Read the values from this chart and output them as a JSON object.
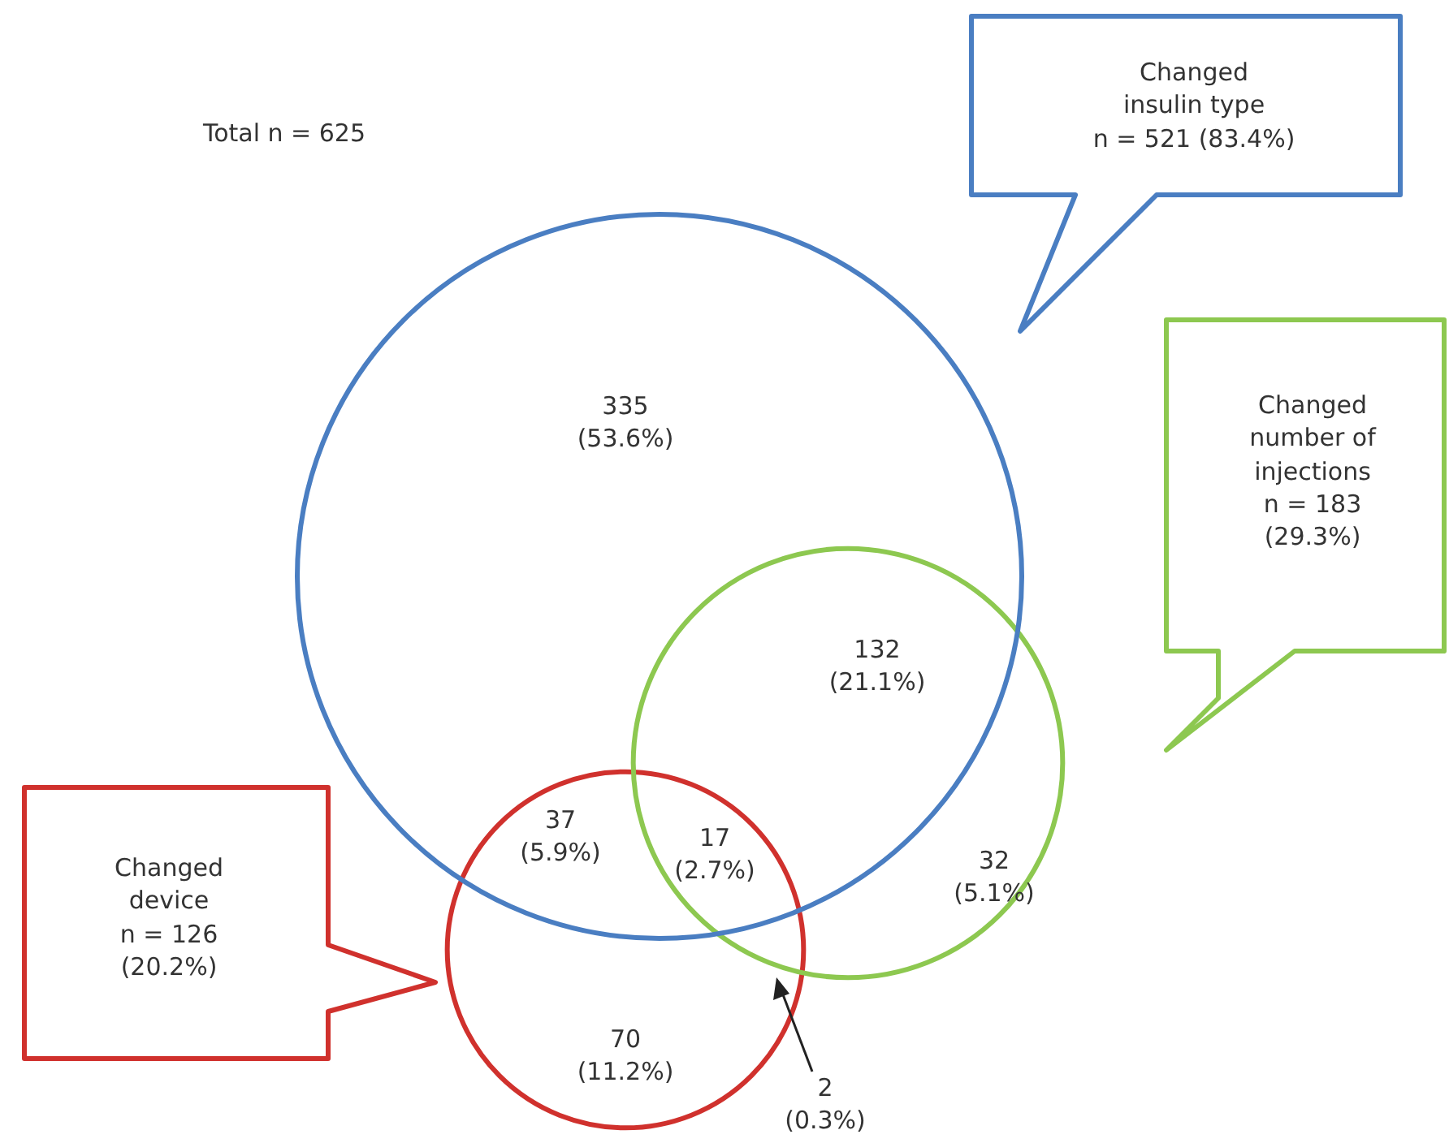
{
  "chart_data": {
    "type": "other",
    "annotations": [
      "Total n = 625",
      "335\n(53.6%)",
      "132\n(21.1%)",
      "37\n(5.9%)",
      "17\n(2.7%)",
      "2\n(0.3%)",
      "70\n(11.2%)",
      "32\n(5.1%)"
    ],
    "series": [
      {
        "name": "Changed\ninsulin type",
        "color": "#4a7ec2",
        "values": [
          521
        ],
        "value_labels": [
          "n = 521 (83.4%)"
        ]
      },
      {
        "name": "Changed\nnumber of\ninjections",
        "color": "#8dc850",
        "values": [
          183
        ],
        "value_labels": [
          "n = 183\n(29.3%)"
        ]
      },
      {
        "name": "Changed\ndevice",
        "color": "#d0312d",
        "values": [
          126
        ],
        "value_labels": [
          "n = 126\n(20.2%)"
        ]
      }
    ]
  }
}
